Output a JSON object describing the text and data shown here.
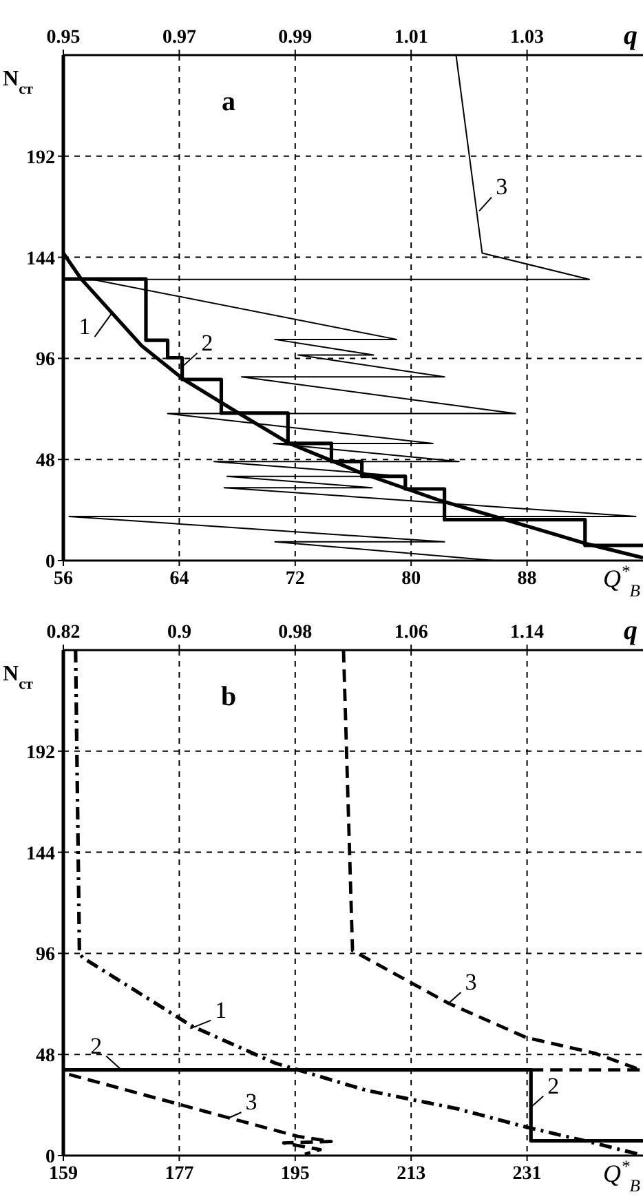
{
  "chart_data": [
    {
      "type": "line",
      "title": "a",
      "xlabel": "Q$^{*}$$_{В}$",
      "ylabel": "N$_{ст}$",
      "x2label": "q",
      "xlim": [
        56,
        96
      ],
      "xticks": [
        56,
        64,
        72,
        80,
        88
      ],
      "x2lim": [
        0.95,
        1.05
      ],
      "x2ticks": [
        0.95,
        0.97,
        0.99,
        1.01,
        1.03
      ],
      "ylim": [
        0,
        240
      ],
      "yticks": [
        0,
        48,
        96,
        144,
        192
      ],
      "grid": true,
      "line_style": "solid",
      "series": [
        {
          "type": "line",
          "color": "#000000",
          "x": [
            56,
            57.2,
            61.4,
            64.3,
            68.1,
            71.6,
            76.6,
            82,
            87.4,
            92.2,
            96
          ],
          "values": [
            146,
            134,
            102,
            86,
            70,
            55.6,
            41.5,
            28.5,
            17.6,
            7.8,
            1.3
          ]
        },
        {
          "type": "step",
          "color": "#000000",
          "x": [
            56,
            61.7,
            63.2,
            64.2,
            66.9,
            71.5,
            74.5,
            76.6,
            79.6,
            82.3,
            92,
            96
          ],
          "values": [
            133.7,
            104.6,
            96.3,
            86,
            70,
            55.6,
            47,
            40,
            34,
            19.4,
            7.2,
            7.2
          ]
        },
        {
          "type": "line",
          "color": "#000000",
          "x": [
            83.1,
            84.9,
            92.3,
            58,
            79,
            70.6,
            77.4,
            72.2,
            82.3,
            68.3,
            87.2,
            63.2,
            81.5,
            70.5,
            83.3,
            66.4,
            79.6,
            67.3,
            77.3,
            67.1,
            95.5,
            56.4,
            82.3,
            70.6,
            85.7
          ],
          "values": [
            240,
            146,
            133.5,
            133.5,
            105,
            105,
            97.6,
            97.6,
            87.2,
            87.2,
            69.8,
            69.8,
            55.6,
            55.6,
            47,
            47,
            40,
            40,
            34.6,
            34.6,
            20.9,
            20.9,
            8.9,
            8.9,
            0
          ]
        }
      ],
      "annotations": [
        {
          "text": "1",
          "x": 59.4,
          "y": 118
        },
        {
          "text": "2",
          "x": 64.2,
          "y": 92
        },
        {
          "text": "3",
          "x": 84.7,
          "y": 166
        }
      ]
    },
    {
      "type": "line",
      "title": "b",
      "xlabel": "Q$^{*}$$_{В}$",
      "ylabel": "N$_{ст}$",
      "x2label": "q",
      "xlim": [
        159,
        249
      ],
      "xticks": [
        159,
        177,
        195,
        213,
        231
      ],
      "x2lim": [
        0.82,
        1.22
      ],
      "x2ticks": [
        0.82,
        0.9,
        0.98,
        1.06,
        1.14
      ],
      "ylim": [
        0,
        240
      ],
      "yticks": [
        0,
        48,
        96,
        144,
        192
      ],
      "grid": true,
      "series": [
        {
          "type": "line",
          "color": "#000000",
          "line_style": "dashdot",
          "x": [
            160.9,
            161.5,
            162,
            179,
            191.8,
            206,
            220.2,
            230.9,
            241.5,
            248.6
          ],
          "values": [
            240,
            96,
            94,
            61.4,
            44,
            31,
            22.2,
            13.5,
            5.9,
            0.4
          ]
        },
        {
          "type": "step",
          "color": "#000000",
          "line_style": "solid",
          "x": [
            159,
            231.6,
            249
          ],
          "values": [
            40.7,
            7,
            7
          ]
        },
        {
          "type": "line",
          "color": "#000000",
          "line_style": "dashed",
          "x": [
            159.9,
            184.7,
            195.4,
            200.6,
            193.2,
            198.9,
            196.5,
            null,
            202.5,
            203.9,
            218.8,
            230.9,
            241.5,
            248.6,
            null,
            231.6,
            249
          ],
          "values": [
            38.5,
            17.9,
            9.1,
            6.7,
            6,
            2.8,
            0.6,
            null,
            240,
            97.3,
            72.3,
            56,
            48.6,
            40.7,
            null,
            40.7,
            40.7
          ]
        }
      ],
      "annotations": [
        {
          "text": "1",
          "x": 178.7,
          "y": 60.3
        },
        {
          "text": "2",
          "x": 168,
          "y": 40.7
        },
        {
          "text": "3",
          "x": 184.7,
          "y": 17.9
        },
        {
          "text": "2",
          "x": 231.6,
          "y": 23
        },
        {
          "text": "3",
          "x": 218.8,
          "y": 72.3
        }
      ]
    }
  ]
}
